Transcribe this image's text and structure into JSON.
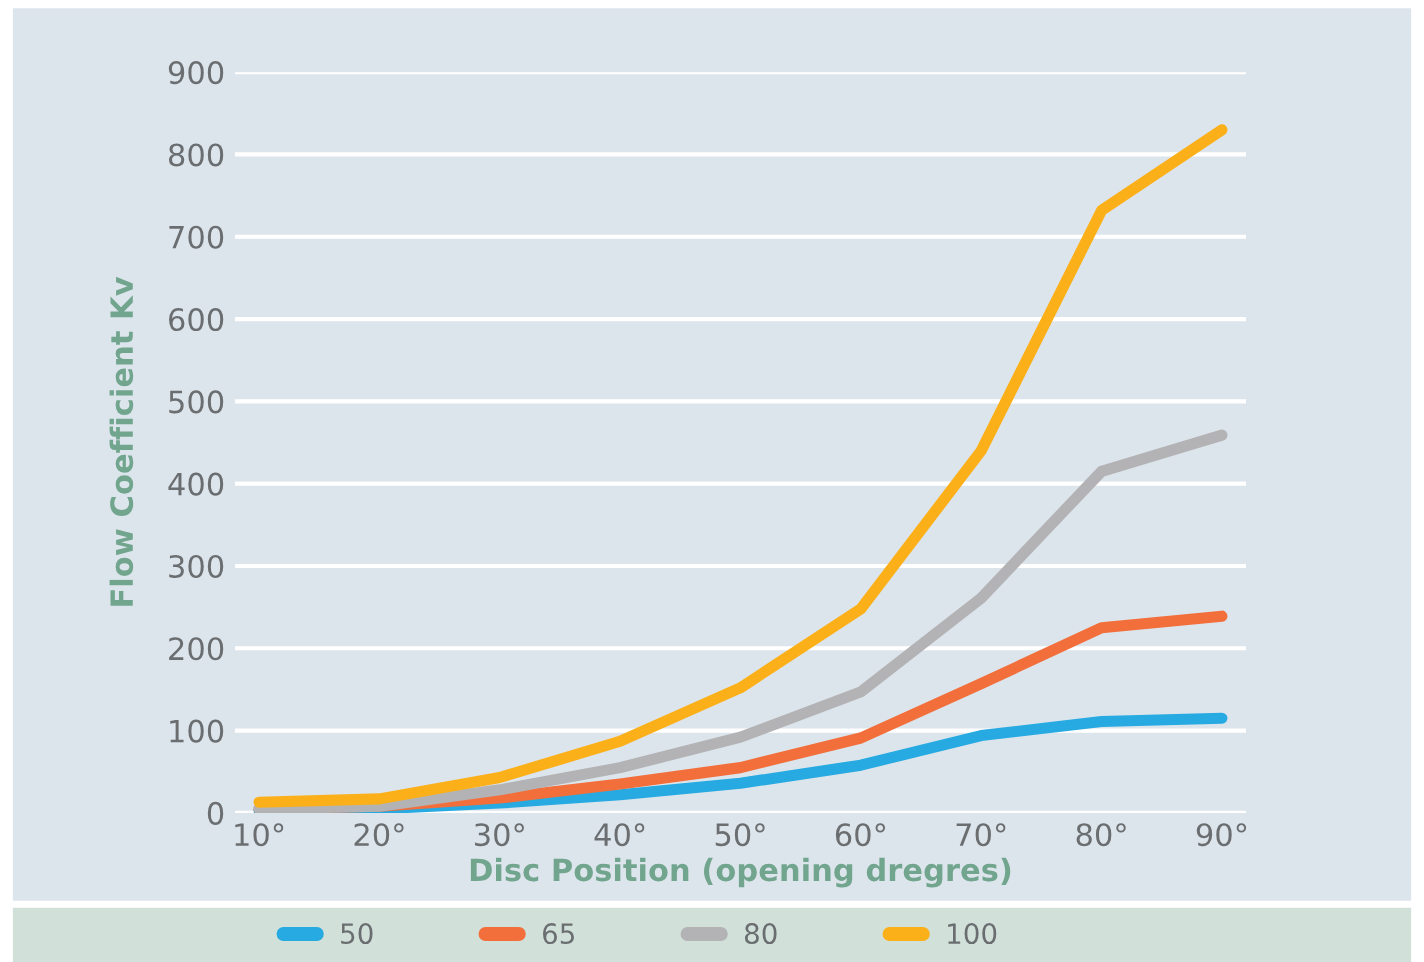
{
  "chart_data": {
    "type": "line",
    "xlabel": "Disc Position (opening dregres)",
    "ylabel": "Flow Coefficient Kv",
    "categories": [
      "10°",
      "20°",
      "30°",
      "40°",
      "50°",
      "60°",
      "70°",
      "80°",
      "90°"
    ],
    "series": [
      {
        "name": "50",
        "color": "#27aae1",
        "values": [
          3,
          5,
          12,
          22,
          36,
          58,
          94,
          111,
          115
        ]
      },
      {
        "name": "65",
        "color": "#f26f3b",
        "values": [
          5,
          8,
          18,
          35,
          55,
          91,
          157,
          225,
          239
        ]
      },
      {
        "name": "80",
        "color": "#b3b3b5",
        "values": [
          5,
          8,
          28,
          55,
          92,
          147,
          261,
          415,
          459
        ]
      },
      {
        "name": "100",
        "color": "#fbb01a",
        "values": [
          13,
          17,
          43,
          87,
          152,
          248,
          440,
          732,
          830
        ]
      }
    ],
    "ylim": [
      0,
      900
    ],
    "yticks": [
      0,
      100,
      200,
      300,
      400,
      500,
      600,
      700,
      800,
      900
    ],
    "grid": "y",
    "legend": "bottom",
    "marker": "none",
    "line_style": "solid"
  }
}
